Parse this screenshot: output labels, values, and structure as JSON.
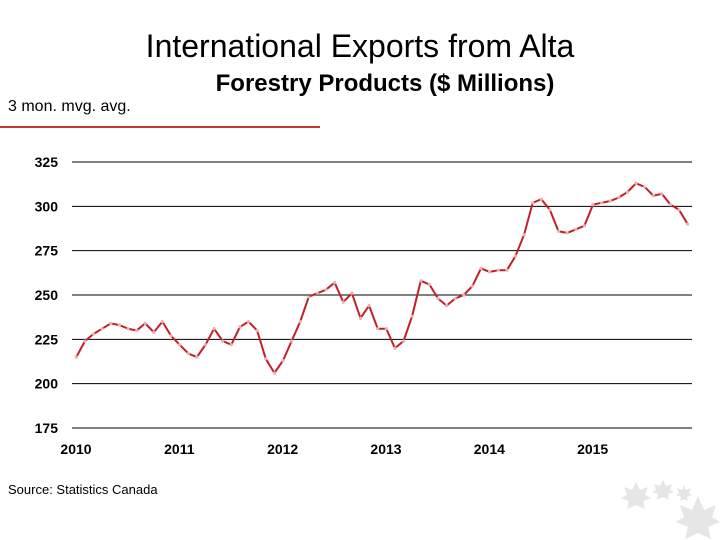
{
  "header": {
    "title": "International Exports from Alta",
    "subtitle": "Forestry Products ($ Millions)",
    "note": "3 mon. mvg. avg."
  },
  "footer": {
    "source": "Source: Statistics Canada"
  },
  "colors": {
    "series": "#c0202a",
    "accent_rule": "#c0392b"
  },
  "chart_data": {
    "type": "line",
    "title": "Forestry Products ($ Millions)",
    "xlabel": "",
    "ylabel": "",
    "ylim": [
      175,
      325
    ],
    "xlim": [
      2010,
      2016
    ],
    "yticks": [
      175,
      200,
      225,
      250,
      275,
      300,
      325
    ],
    "xticks": [
      2010,
      2011,
      2012,
      2013,
      2014,
      2015
    ],
    "grid": "horizontal",
    "series": [
      {
        "name": "",
        "values": [
          215,
          224,
          228,
          231,
          234,
          233,
          231,
          230,
          234,
          229,
          235,
          227,
          222,
          217,
          215,
          222,
          231,
          224,
          222,
          232,
          235,
          230,
          214,
          206,
          213,
          224,
          235,
          249,
          251,
          253,
          257,
          246,
          251,
          237,
          244,
          231,
          231,
          220,
          224,
          238,
          258,
          256,
          248,
          244,
          248,
          250,
          255,
          265,
          263,
          264,
          264,
          272,
          284,
          302,
          304,
          298,
          286,
          285,
          287,
          289,
          301,
          302,
          303,
          305,
          308,
          313,
          311,
          306,
          307,
          301,
          298,
          290
        ]
      }
    ]
  }
}
